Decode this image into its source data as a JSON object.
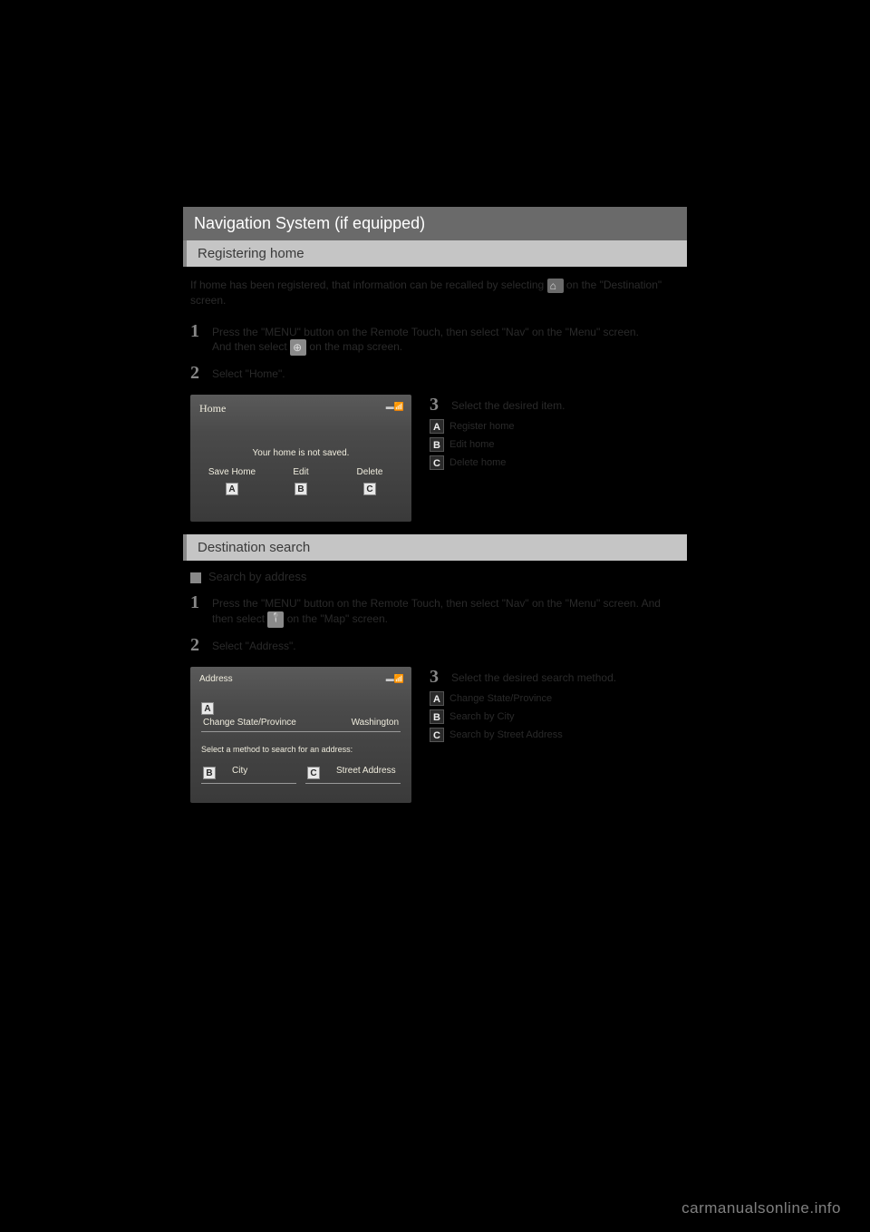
{
  "main_title": "Navigation System (if equipped)",
  "section1": {
    "title": "Registering home",
    "intro_pre": "If home has been registered, that information can be recalled by selecting ",
    "intro_post": " on the \"Destination\" screen.",
    "step1_pre": "Press the \"MENU\" button on the Remote Touch, then select \"Nav\" on the \"Menu\" screen.",
    "step1_post": "And then select ",
    "step1_end": " on the map screen.",
    "step2": "Select \"Home\".",
    "screenshot": {
      "title": "Home",
      "center": "Your home is not saved.",
      "btn_a": "Save Home",
      "btn_b": "Edit",
      "btn_c": "Delete"
    },
    "step3": "Select the desired item.",
    "opt_a": "Register home",
    "opt_b": "Edit home",
    "opt_c": "Delete home"
  },
  "section2": {
    "title": "Destination search",
    "subtitle": "Search by address",
    "step1_pre": "Press the \"MENU\" button on the Remote Touch, then select \"Nav\" on the \"Menu\" screen. And then select ",
    "step1_post": " on the \"Map\" screen.",
    "step2": "Select \"Address\".",
    "screenshot": {
      "title": "Address",
      "change_state": "Change State/Province",
      "state_value": "Washington",
      "instruction": "Select a method to search for an address:",
      "opt_b": "City",
      "opt_c": "Street Address"
    },
    "step3": "Select the desired search method.",
    "opt_a": "Change State/Province",
    "opt_b": "Search by City",
    "opt_c": "Search by Street Address"
  },
  "watermark": "carmanualsonline.info",
  "colors": {
    "black": "#000000",
    "header_bg": "#6a6a6a",
    "subheader_bg": "#c5c5c5",
    "screenshot_bg": "#4a4a4a",
    "text_light": "#f0edde"
  }
}
